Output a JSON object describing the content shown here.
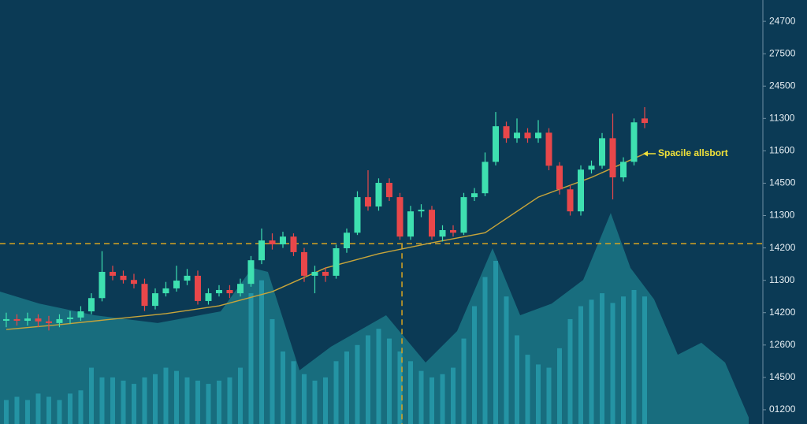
{
  "chart_data": {
    "type": "candlestick",
    "annotation": "Spacile allsbort",
    "ylim": [
      -0.44,
      12.66
    ],
    "xlim": [
      -0.59,
      71.11
    ],
    "yticks": [
      {
        "value": 12,
        "label": "24700"
      },
      {
        "value": 11,
        "label": "27500"
      },
      {
        "value": 10,
        "label": "24500"
      },
      {
        "value": 9,
        "label": "11300"
      },
      {
        "value": 8,
        "label": "11600"
      },
      {
        "value": 7,
        "label": "14500"
      },
      {
        "value": 6,
        "label": "11300"
      },
      {
        "value": 5,
        "label": "14200"
      },
      {
        "value": 4,
        "label": "11300"
      },
      {
        "value": 3,
        "label": "14200"
      },
      {
        "value": 2,
        "label": "12600"
      },
      {
        "value": 1,
        "label": "14500"
      },
      {
        "value": 0,
        "label": "01200"
      }
    ],
    "up_color": "#3ee0b0",
    "down_color": "#e8474a",
    "open": [
      2.75,
      2.8,
      2.75,
      2.82,
      2.73,
      2.68,
      2.8,
      2.85,
      3.04,
      3.45,
      4.26,
      4.14,
      4.01,
      3.89,
      3.21,
      3.6,
      3.75,
      3.99,
      4.14,
      3.36,
      3.6,
      3.7,
      3.6,
      3.89,
      4.62,
      5.23,
      5.11,
      5.35,
      4.87,
      4.14,
      4.26,
      4.14,
      4.99,
      5.47,
      6.57,
      6.28,
      7.01,
      6.57,
      5.35,
      6.13,
      6.18,
      5.35,
      5.55,
      5.47,
      6.57,
      6.69,
      7.66,
      8.76,
      8.39,
      8.56,
      8.39,
      8.56,
      7.54,
      6.81,
      6.13,
      7.42,
      7.54,
      8.39,
      7.18,
      7.66,
      9.0
    ],
    "high": [
      3.0,
      2.95,
      3.0,
      2.95,
      2.9,
      2.95,
      3.05,
      3.2,
      3.6,
      4.9,
      4.45,
      4.3,
      4.2,
      4.05,
      3.75,
      3.95,
      4.45,
      4.35,
      4.3,
      3.75,
      3.85,
      3.85,
      4.05,
      4.75,
      5.6,
      5.45,
      5.5,
      5.45,
      5.0,
      4.45,
      4.4,
      5.1,
      5.6,
      6.75,
      7.4,
      7.15,
      7.15,
      6.7,
      6.3,
      6.35,
      6.3,
      5.7,
      5.7,
      6.7,
      6.85,
      7.95,
      9.2,
      8.9,
      9.0,
      8.7,
      8.95,
      8.7,
      7.65,
      6.95,
      7.55,
      7.7,
      8.55,
      9.15,
      7.8,
      9.0,
      9.35
    ],
    "low": [
      2.55,
      2.6,
      2.6,
      2.55,
      2.45,
      2.55,
      2.65,
      2.75,
      2.95,
      3.35,
      4.0,
      3.9,
      3.75,
      3.05,
      3.1,
      3.5,
      3.65,
      3.85,
      3.25,
      3.25,
      3.5,
      3.45,
      3.5,
      3.8,
      4.5,
      4.95,
      5.0,
      4.75,
      3.95,
      3.6,
      3.95,
      4.05,
      4.85,
      5.4,
      6.15,
      6.15,
      6.45,
      5.25,
      5.25,
      5.95,
      5.25,
      5.2,
      5.35,
      5.4,
      6.45,
      6.6,
      7.55,
      8.25,
      8.25,
      8.25,
      8.25,
      7.4,
      6.65,
      6.0,
      6.0,
      7.3,
      7.45,
      6.5,
      7.05,
      7.55,
      8.7
    ],
    "close": [
      2.8,
      2.75,
      2.82,
      2.73,
      2.68,
      2.8,
      2.85,
      3.04,
      3.45,
      4.26,
      4.14,
      4.01,
      3.89,
      3.21,
      3.6,
      3.75,
      3.99,
      4.14,
      3.36,
      3.6,
      3.7,
      3.6,
      3.89,
      4.62,
      5.23,
      5.11,
      5.35,
      4.87,
      4.14,
      4.26,
      4.14,
      4.99,
      5.47,
      6.57,
      6.28,
      7.01,
      6.57,
      5.35,
      6.13,
      6.18,
      5.35,
      5.55,
      5.47,
      6.57,
      6.69,
      7.66,
      8.76,
      8.39,
      8.56,
      8.39,
      8.56,
      7.54,
      6.81,
      6.13,
      7.42,
      7.54,
      8.39,
      7.18,
      7.66,
      8.88,
      8.86
    ],
    "volume": {
      "color": "#2aa5b5",
      "values": [
        0.3,
        0.4,
        0.3,
        0.5,
        0.4,
        0.3,
        0.5,
        0.6,
        1.3,
        1.0,
        1.0,
        0.9,
        0.8,
        1.0,
        1.1,
        1.3,
        1.2,
        1.0,
        0.9,
        0.8,
        0.9,
        1.0,
        1.3,
        3.6,
        4.0,
        2.8,
        1.8,
        1.5,
        1.1,
        0.9,
        1.0,
        1.5,
        1.8,
        2.0,
        2.3,
        2.5,
        2.2,
        1.8,
        1.5,
        1.2,
        1.0,
        1.1,
        1.3,
        2.2,
        3.2,
        4.1,
        4.6,
        3.5,
        2.3,
        1.7,
        1.4,
        1.3,
        1.9,
        2.8,
        3.2,
        3.4,
        3.6,
        3.3,
        3.5,
        3.7,
        3.5
      ]
    },
    "moving_average": {
      "color": "#c8a53a",
      "x": [
        0,
        5,
        10,
        15,
        20,
        25,
        30,
        35,
        40,
        45,
        50,
        55,
        60
      ],
      "values": [
        2.48,
        2.63,
        2.8,
        2.97,
        3.21,
        3.65,
        4.38,
        4.82,
        5.16,
        5.47,
        6.57,
        7.18,
        7.91
      ]
    },
    "area": {
      "color": "#1d7f8c",
      "x": [
        -0.59,
        3.11,
        8.3,
        14.22,
        20.15,
        23.11,
        24.59,
        27.56,
        30.52,
        35.7,
        39.41,
        42.37,
        45.7,
        48.3,
        51.26,
        54.22,
        56.81,
        58.67,
        60.89,
        63.11,
        65.33,
        67.56,
        69.78
      ],
      "values": [
        3.65,
        3.28,
        2.92,
        2.68,
        3.04,
        4.38,
        4.26,
        1.22,
        1.95,
        2.92,
        1.46,
        2.43,
        4.99,
        2.92,
        3.28,
        4.01,
        6.08,
        4.38,
        3.41,
        1.7,
        2.07,
        1.46,
        -0.24
      ]
    },
    "hline": 5.13,
    "vline": 37.19,
    "guide_color": "#d9a521"
  }
}
